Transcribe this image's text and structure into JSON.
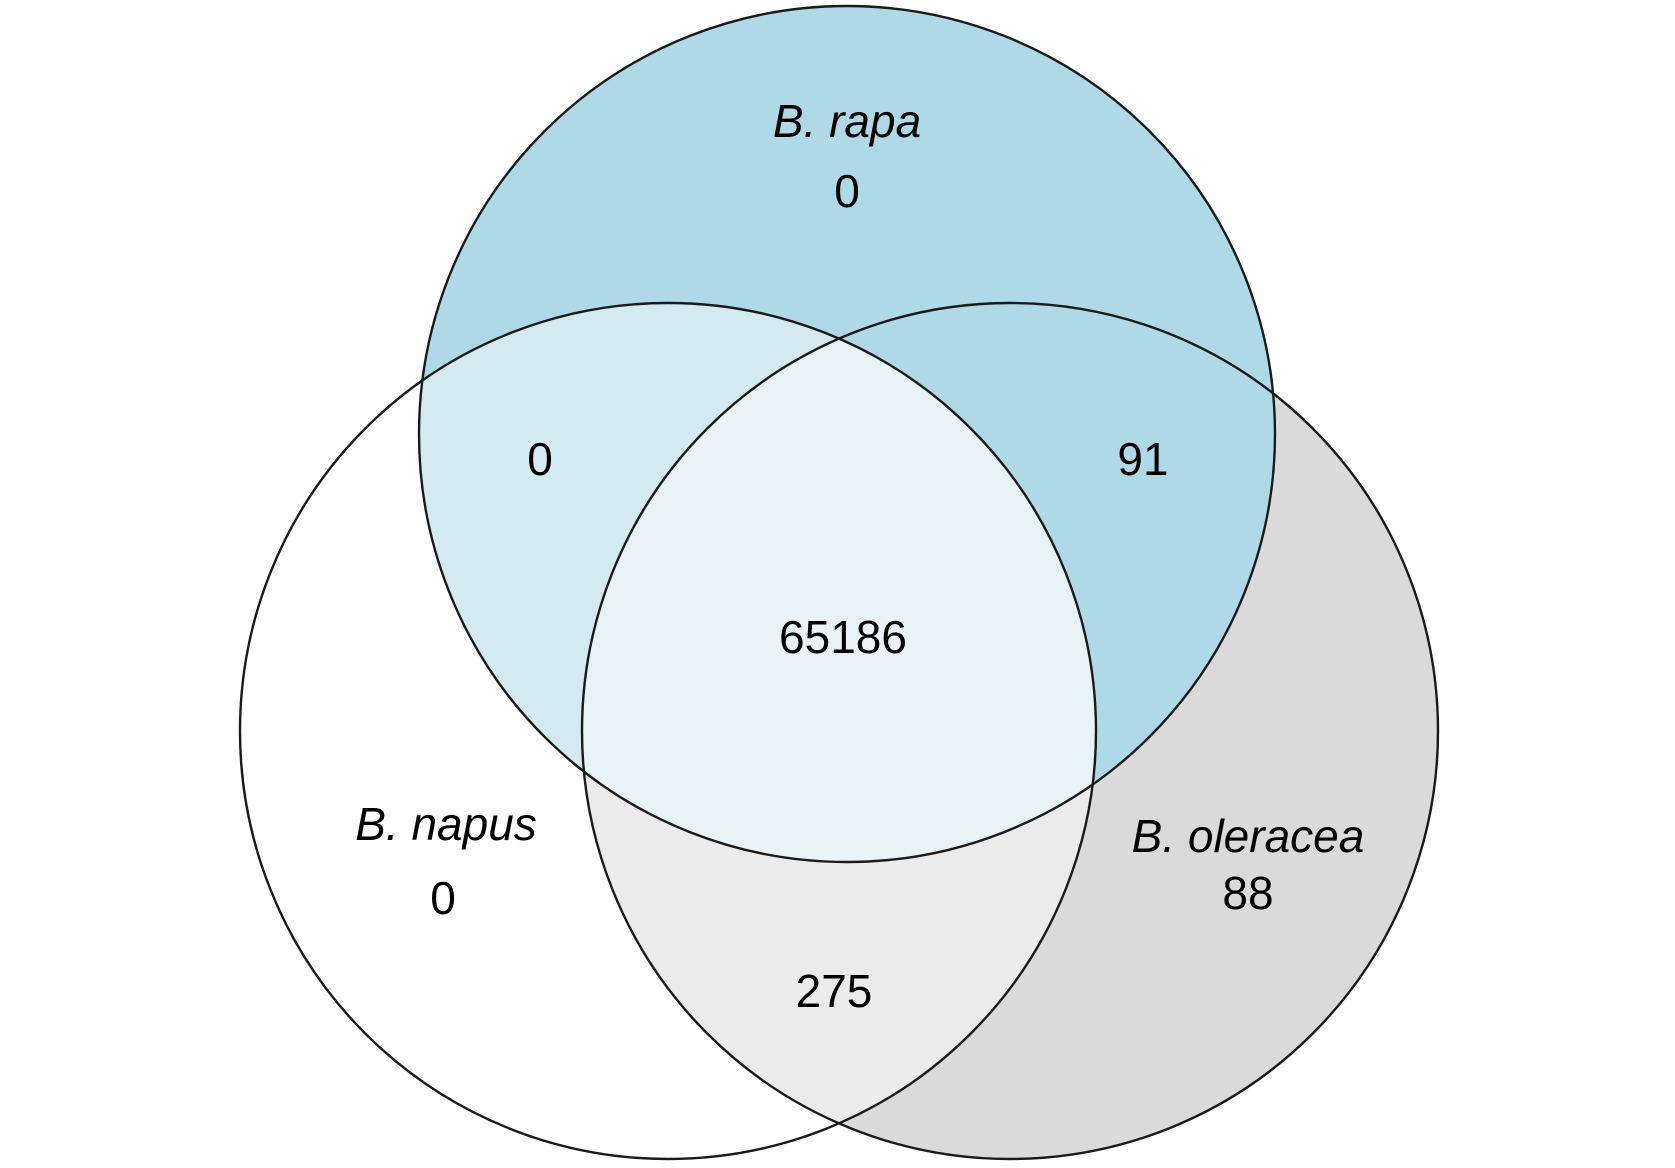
{
  "venn": {
    "sets": [
      {
        "key": "rapa",
        "name": "B. rapa",
        "only": "0",
        "color": "#add8e6"
      },
      {
        "key": "napus",
        "name": "B. napus",
        "only": "0",
        "color": "#ffffff"
      },
      {
        "key": "oleracea",
        "name": "B. oleracea",
        "only": "88",
        "color": "#d3d3d3"
      }
    ],
    "intersections": {
      "rapa_napus": "0",
      "rapa_oleracea": "91",
      "napus_oleracea": "275",
      "all_three": "65186"
    }
  }
}
